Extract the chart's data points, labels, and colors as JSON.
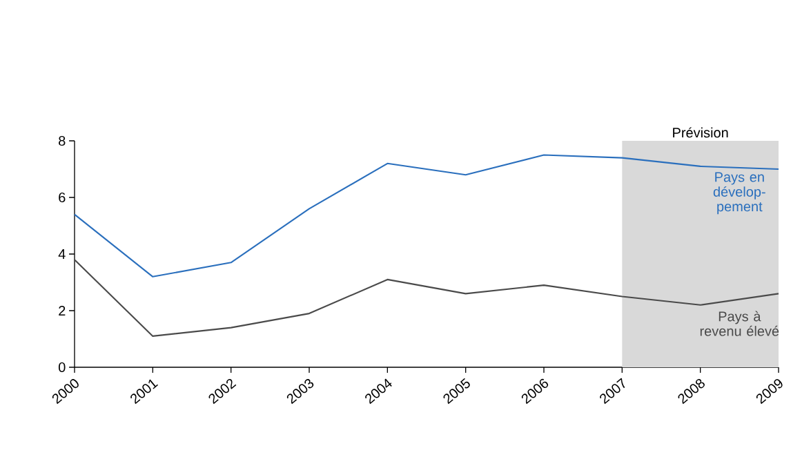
{
  "chart_data": {
    "type": "line",
    "x": [
      2000,
      2001,
      2002,
      2003,
      2004,
      2005,
      2006,
      2007,
      2008,
      2009
    ],
    "series": [
      {
        "name": "Pays en dévelop-pement",
        "color": "#2a6fbd",
        "values": [
          5.4,
          3.2,
          3.7,
          5.6,
          7.2,
          6.8,
          7.5,
          7.4,
          7.1,
          7.0
        ]
      },
      {
        "name": "Pays à revenu élevé",
        "color": "#4a4a4a",
        "values": [
          3.8,
          1.1,
          1.4,
          1.9,
          3.1,
          2.6,
          2.9,
          2.5,
          2.2,
          2.6
        ]
      }
    ],
    "xlim": [
      2000,
      2009
    ],
    "xticks": [
      2000,
      2001,
      2002,
      2003,
      2004,
      2005,
      2006,
      2007,
      2008,
      2009
    ],
    "ylim": [
      0,
      8
    ],
    "yticks": [
      0,
      2,
      4,
      6,
      8
    ],
    "bands": [
      {
        "axis": "x",
        "from": 2007,
        "to": 2009,
        "label": "Prévision",
        "color": "#d9d9d9"
      }
    ],
    "grid": false,
    "legend": false,
    "marker": "none",
    "line_style": "solid"
  }
}
